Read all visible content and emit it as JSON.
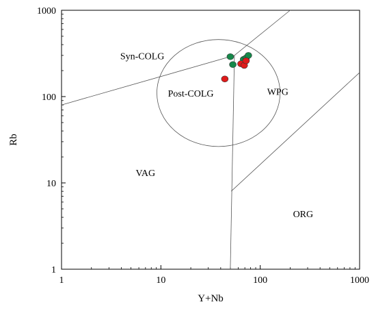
{
  "chart_data": {
    "type": "scatter",
    "xlabel": "Y+Nb",
    "ylabel": "Rb",
    "x_scale": "log",
    "y_scale": "log",
    "xlim": [
      1,
      1000
    ],
    "ylim": [
      1,
      1000
    ],
    "x_ticks": [
      {
        "value": 1,
        "label": "1"
      },
      {
        "value": 10,
        "label": "10"
      },
      {
        "value": 100,
        "label": "100"
      },
      {
        "value": 1000,
        "label": "1000"
      }
    ],
    "y_ticks": [
      {
        "value": 1,
        "label": "1"
      },
      {
        "value": 10,
        "label": "10"
      },
      {
        "value": 100,
        "label": "100"
      },
      {
        "value": 1000,
        "label": "1000"
      }
    ],
    "grid": false,
    "legend": "none",
    "boundaries": [
      {
        "name": "syn-colg-upper",
        "points": [
          [
            1,
            80
          ],
          [
            55,
            300
          ],
          [
            200,
            1000
          ]
        ]
      },
      {
        "name": "vag-wpg",
        "points": [
          [
            50,
            1
          ],
          [
            55,
            300
          ]
        ]
      },
      {
        "name": "wpg-org",
        "points": [
          [
            51,
            8
          ],
          [
            1000,
            190
          ]
        ]
      }
    ],
    "post_colg_field": {
      "center": [
        38,
        110
      ],
      "radius_decades": 0.62
    },
    "fields": [
      {
        "label": "Syn-COLG",
        "x": 6.5,
        "y": 270
      },
      {
        "label": "Post-COLG",
        "x": 20,
        "y": 100
      },
      {
        "label": "WPG",
        "x": 150,
        "y": 105
      },
      {
        "label": "VAG",
        "x": 7,
        "y": 12
      },
      {
        "label": "ORG",
        "x": 270,
        "y": 4
      }
    ],
    "series": [
      {
        "color": "#16884a",
        "points": [
          [
            50,
            290
          ],
          [
            53,
            235
          ],
          [
            68,
            270
          ],
          [
            72,
            280
          ],
          [
            76,
            300
          ]
        ]
      },
      {
        "color": "#e01b1b",
        "points": [
          [
            44,
            160
          ],
          [
            64,
            240
          ],
          [
            69,
            230
          ],
          [
            72,
            260
          ]
        ]
      }
    ]
  }
}
